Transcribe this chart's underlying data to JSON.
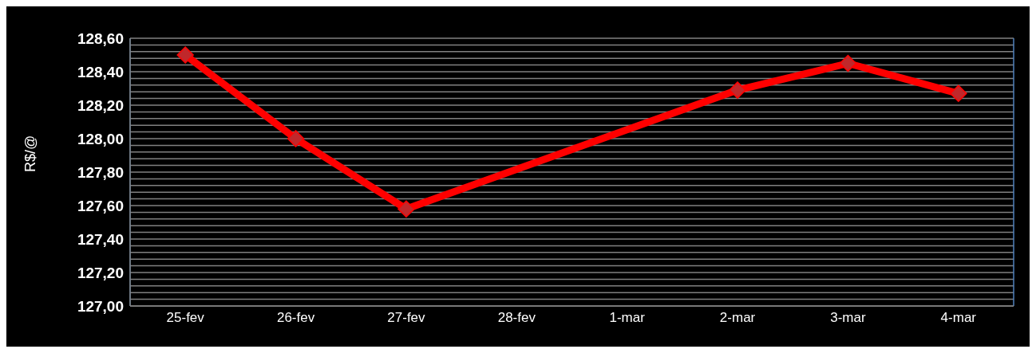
{
  "chart_data": {
    "type": "line",
    "ylabel": "R$/@",
    "categories": [
      "25-fev",
      "26-fev",
      "27-fev",
      "28-fev",
      "1-mar",
      "2-mar",
      "3-mar",
      "4-mar"
    ],
    "series": [
      {
        "color": "#ff0000",
        "values": [
          128.5,
          128.0,
          127.58,
          null,
          null,
          128.29,
          128.45,
          128.27
        ]
      }
    ],
    "ylim": [
      127,
      128.6
    ],
    "yticks": [
      {
        "value": 127,
        "label": "127,00"
      },
      {
        "value": 127.04,
        "label": null
      },
      {
        "value": 127.08,
        "label": null
      },
      {
        "value": 127.12,
        "label": null
      },
      {
        "value": 127.16,
        "label": null
      },
      {
        "value": 127.2,
        "label": "127,20"
      },
      {
        "value": 127.24,
        "label": null
      },
      {
        "value": 127.28,
        "label": null
      },
      {
        "value": 127.32,
        "label": null
      },
      {
        "value": 127.36,
        "label": null
      },
      {
        "value": 127.4,
        "label": "127,40"
      },
      {
        "value": 127.44,
        "label": null
      },
      {
        "value": 127.48,
        "label": null
      },
      {
        "value": 127.52,
        "label": null
      },
      {
        "value": 127.56,
        "label": null
      },
      {
        "value": 127.6,
        "label": "127,60"
      },
      {
        "value": 127.64,
        "label": null
      },
      {
        "value": 127.68,
        "label": null
      },
      {
        "value": 127.72,
        "label": null
      },
      {
        "value": 127.76,
        "label": null
      },
      {
        "value": 127.8,
        "label": "127,80"
      },
      {
        "value": 127.84,
        "label": null
      },
      {
        "value": 127.88,
        "label": null
      },
      {
        "value": 127.92,
        "label": null
      },
      {
        "value": 127.96,
        "label": null
      },
      {
        "value": 128,
        "label": "128,00"
      },
      {
        "value": 128.04,
        "label": null
      },
      {
        "value": 128.08,
        "label": null
      },
      {
        "value": 128.12,
        "label": null
      },
      {
        "value": 128.16,
        "label": null
      },
      {
        "value": 128.2,
        "label": "128,20"
      },
      {
        "value": 128.24,
        "label": null
      },
      {
        "value": 128.28,
        "label": null
      },
      {
        "value": 128.32,
        "label": null
      },
      {
        "value": 128.36,
        "label": null
      },
      {
        "value": 128.4,
        "label": "128,40"
      },
      {
        "value": 128.44,
        "label": null
      },
      {
        "value": 128.48,
        "label": null
      },
      {
        "value": 128.52,
        "label": null
      },
      {
        "value": 128.56,
        "label": null
      },
      {
        "value": 128.6,
        "label": "128,60"
      }
    ],
    "grid": true,
    "legend": false,
    "marker": "diamond",
    "line_style": "solid"
  }
}
